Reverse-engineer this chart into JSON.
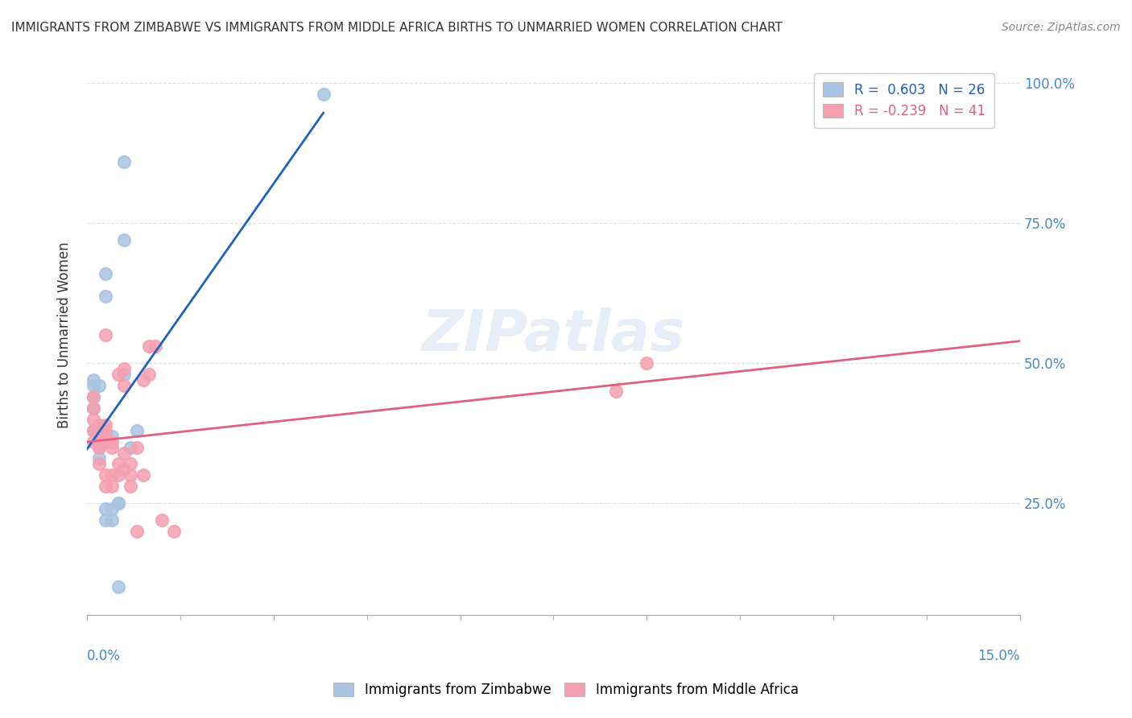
{
  "title": "IMMIGRANTS FROM ZIMBABWE VS IMMIGRANTS FROM MIDDLE AFRICA BIRTHS TO UNMARRIED WOMEN CORRELATION CHART",
  "source": "Source: ZipAtlas.com",
  "ylabel": "Births to Unmarried Women",
  "ylabel_right_ticks": [
    "25.0%",
    "50.0%",
    "75.0%",
    "100.0%"
  ],
  "ylabel_right_vals": [
    0.25,
    0.5,
    0.75,
    1.0
  ],
  "R_blue": 0.603,
  "N_blue": 26,
  "R_pink": -0.239,
  "N_pink": 41,
  "blue_color": "#a8c4e0",
  "pink_color": "#f4a0b0",
  "blue_line_color": "#2060c0",
  "pink_line_color": "#e06080",
  "legend_blue_label": "R =  0.603   N = 26",
  "legend_pink_label": "R = -0.239   N = 41",
  "blue_scatter_x": [
    0.001,
    0.001,
    0.001,
    0.001,
    0.001,
    0.002,
    0.002,
    0.002,
    0.002,
    0.003,
    0.003,
    0.003,
    0.003,
    0.003,
    0.004,
    0.004,
    0.004,
    0.005,
    0.005,
    0.005,
    0.006,
    0.006,
    0.006,
    0.007,
    0.008,
    0.038
  ],
  "blue_scatter_y": [
    0.38,
    0.42,
    0.44,
    0.46,
    0.47,
    0.33,
    0.35,
    0.38,
    0.46,
    0.22,
    0.24,
    0.37,
    0.62,
    0.66,
    0.22,
    0.24,
    0.37,
    0.1,
    0.25,
    0.25,
    0.48,
    0.72,
    0.86,
    0.35,
    0.38,
    0.98
  ],
  "pink_scatter_x": [
    0.001,
    0.001,
    0.001,
    0.001,
    0.001,
    0.002,
    0.002,
    0.002,
    0.002,
    0.002,
    0.003,
    0.003,
    0.003,
    0.003,
    0.003,
    0.003,
    0.004,
    0.004,
    0.004,
    0.004,
    0.005,
    0.005,
    0.005,
    0.006,
    0.006,
    0.006,
    0.006,
    0.007,
    0.007,
    0.007,
    0.008,
    0.008,
    0.009,
    0.009,
    0.01,
    0.01,
    0.011,
    0.012,
    0.014,
    0.085,
    0.09
  ],
  "pink_scatter_y": [
    0.36,
    0.38,
    0.4,
    0.42,
    0.44,
    0.32,
    0.35,
    0.36,
    0.38,
    0.39,
    0.28,
    0.3,
    0.36,
    0.38,
    0.39,
    0.55,
    0.28,
    0.3,
    0.35,
    0.36,
    0.3,
    0.32,
    0.48,
    0.31,
    0.34,
    0.46,
    0.49,
    0.28,
    0.3,
    0.32,
    0.2,
    0.35,
    0.3,
    0.47,
    0.48,
    0.53,
    0.53,
    0.22,
    0.2,
    0.45,
    0.5
  ],
  "xlim": [
    0.0,
    0.15
  ],
  "ylim": [
    0.05,
    1.05
  ],
  "watermark": "ZIPatlas",
  "background_color": "#ffffff",
  "grid_color": "#e0e0e0"
}
